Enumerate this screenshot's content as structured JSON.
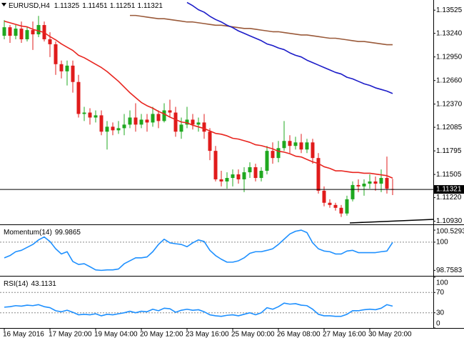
{
  "chart_data": {
    "type": "candlestick",
    "title": "EURUSD,H4",
    "categories": [
      "16 May 2016",
      null,
      null,
      null,
      null,
      null,
      null,
      null,
      "17 May 20:00",
      null,
      null,
      null,
      null,
      null,
      null,
      null,
      "19 May 04:00",
      null,
      null,
      null,
      null,
      null,
      null,
      null,
      "20 May 12:00",
      null,
      null,
      null,
      null,
      null,
      null,
      null,
      "23 May 16:00",
      null,
      null,
      null,
      null,
      null,
      null,
      null,
      "25 May 00:00",
      null,
      null,
      null,
      null,
      null,
      null,
      null,
      "26 May 08:00",
      null,
      null,
      null,
      null,
      null,
      null,
      null,
      "27 May 16:00",
      null,
      null,
      null,
      null,
      null,
      null,
      null,
      "30 May 20:00",
      null,
      null,
      null,
      null
    ],
    "candles": [
      [
        1.1321,
        1.13403,
        1.13167,
        1.13315
      ],
      [
        1.13315,
        1.13342,
        1.13123,
        1.1321
      ],
      [
        1.1321,
        1.13342,
        1.13167,
        1.13298
      ],
      [
        1.13298,
        1.13385,
        1.13123,
        1.13167
      ],
      [
        1.13167,
        1.13315,
        1.1314,
        1.1328
      ],
      [
        1.1328,
        1.13385,
        1.13036,
        1.13228
      ],
      [
        1.13228,
        1.13455,
        1.13193,
        1.13342
      ],
      [
        1.13342,
        1.13385,
        1.1314,
        1.13167
      ],
      [
        1.13167,
        1.13254,
        1.12948,
        1.13106
      ],
      [
        1.13106,
        1.1314,
        1.1273,
        1.12861
      ],
      [
        1.12861,
        1.12905,
        1.12686,
        1.12773
      ],
      [
        1.12773,
        1.12905,
        1.12599,
        1.12843
      ],
      [
        1.12843,
        1.12905,
        1.12511,
        1.12642
      ],
      [
        1.12642,
        1.1273,
        1.12205,
        1.12249
      ],
      [
        1.12249,
        1.12336,
        1.12162,
        1.12266
      ],
      [
        1.12266,
        1.12319,
        1.12118,
        1.12205
      ],
      [
        1.12205,
        1.12293,
        1.12144,
        1.12232
      ],
      [
        1.12232,
        1.12293,
        1.11987,
        1.12031
      ],
      [
        1.12031,
        1.12162,
        1.11812,
        1.12092
      ],
      [
        1.12092,
        1.12144,
        1.11987,
        1.12048
      ],
      [
        1.12048,
        1.12162,
        1.12004,
        1.12074
      ],
      [
        1.12074,
        1.12249,
        1.11987,
        1.12118
      ],
      [
        1.12118,
        1.12293,
        1.12074,
        1.12205
      ],
      [
        1.12205,
        1.1238,
        1.12031,
        1.12118
      ],
      [
        1.12118,
        1.12249,
        1.12074,
        1.12179
      ],
      [
        1.12179,
        1.12249,
        1.12031,
        1.12144
      ],
      [
        1.12144,
        1.12336,
        1.12092,
        1.12249
      ],
      [
        1.12249,
        1.12293,
        1.12074,
        1.12162
      ],
      [
        1.12162,
        1.1238,
        1.12144,
        1.12293
      ],
      [
        1.12293,
        1.12424,
        1.12205,
        1.12266
      ],
      [
        1.12266,
        1.12336,
        1.11969,
        1.12031
      ],
      [
        1.12031,
        1.12205,
        1.11943,
        1.12118
      ],
      [
        1.12118,
        1.12336,
        1.12074,
        1.12179
      ],
      [
        1.12179,
        1.12249,
        1.12057,
        1.12118
      ],
      [
        1.12118,
        1.12205,
        1.12031,
        1.12144
      ],
      [
        1.12144,
        1.12249,
        1.11943,
        1.12031
      ],
      [
        1.12031,
        1.12074,
        1.11681,
        1.11795
      ],
      [
        1.11795,
        1.11856,
        1.11419,
        1.11445
      ],
      [
        1.11445,
        1.1155,
        1.11358,
        1.11419
      ],
      [
        1.11419,
        1.11532,
        1.11331,
        1.11462
      ],
      [
        1.11462,
        1.11567,
        1.11358,
        1.11506
      ],
      [
        1.11506,
        1.11567,
        1.11392,
        1.11445
      ],
      [
        1.11445,
        1.11594,
        1.11288,
        1.11532
      ],
      [
        1.11532,
        1.11655,
        1.11462,
        1.11594
      ],
      [
        1.11594,
        1.11637,
        1.11419,
        1.11462
      ],
      [
        1.11462,
        1.11594,
        1.11419,
        1.1155
      ],
      [
        1.1155,
        1.11856,
        1.11506,
        1.11795
      ],
      [
        1.11795,
        1.11899,
        1.11637,
        1.11707
      ],
      [
        1.11707,
        1.11917,
        1.11655,
        1.11829
      ],
      [
        1.11829,
        1.12162,
        1.11795,
        1.11917
      ],
      [
        1.11917,
        1.11987,
        1.11768,
        1.11856
      ],
      [
        1.11856,
        1.11969,
        1.11812,
        1.11899
      ],
      [
        1.11899,
        1.12004,
        1.11768,
        1.11812
      ],
      [
        1.11812,
        1.11943,
        1.11768,
        1.11899
      ],
      [
        1.11899,
        1.11943,
        1.11637,
        1.11707
      ],
      [
        1.11707,
        1.11768,
        1.1127,
        1.11305
      ],
      [
        1.11305,
        1.11358,
        1.11113,
        1.11157
      ],
      [
        1.11157,
        1.112,
        1.11095,
        1.1113
      ],
      [
        1.1113,
        1.11157,
        1.1106,
        1.11095
      ],
      [
        1.11095,
        1.1113,
        1.10982,
        1.11025
      ],
      [
        1.11025,
        1.11244,
        1.10999,
        1.112
      ],
      [
        1.112,
        1.11419,
        1.11174,
        1.11375
      ],
      [
        1.11375,
        1.11445,
        1.11288,
        1.11358
      ],
      [
        1.11358,
        1.11445,
        1.11244,
        1.11392
      ],
      [
        1.11392,
        1.11506,
        1.11331,
        1.11419
      ],
      [
        1.11419,
        1.1148,
        1.11305,
        1.11392
      ],
      [
        1.11392,
        1.11567,
        1.11288,
        1.11462
      ],
      [
        1.11462,
        1.11725,
        1.1127,
        1.11331
      ],
      [
        1.11325,
        1.11451,
        1.11251,
        1.11321
      ]
    ],
    "up_color": "#1fa81f",
    "down_color": "#e01b1b",
    "ylim": [
      1.109,
      1.1365
    ],
    "yticks": [
      1.13525,
      {
        "value": 1.1324,
        "label": "1.13240"
      },
      {
        "value": 1.1295,
        "label": "1.12950"
      },
      {
        "value": 1.1266,
        "label": "1.12660"
      },
      {
        "value": 1.1237,
        "label": "1.12370"
      },
      1.12085,
      1.11795,
      1.11505,
      {
        "value": 1.1122,
        "label": "1.11220"
      },
      {
        "value": 1.1093,
        "label": "1.10930"
      }
    ],
    "grid": false,
    "overlays": [
      {
        "color": "#e8251f",
        "values": [
          1.1339,
          1.1337,
          1.1335,
          1.1333,
          1.1332,
          1.1329,
          1.1327,
          1.1325,
          1.132,
          1.1316,
          1.1311,
          1.1307,
          1.1303,
          1.1297,
          1.1294,
          1.129,
          1.1286,
          1.1282,
          1.1277,
          1.1271,
          1.1265,
          1.1258,
          1.1251,
          1.1245,
          1.1239,
          1.1235,
          1.1232,
          1.1228,
          1.1225,
          1.1221,
          1.1218,
          1.1215,
          1.1214,
          1.1211,
          1.1209,
          1.1207,
          1.1204,
          1.1201,
          1.12,
          1.1198,
          1.1195,
          1.1194,
          1.1192,
          1.119,
          1.1187,
          1.1186,
          1.1184,
          1.1182,
          1.1179,
          1.1178,
          1.1176,
          1.1173,
          1.1172,
          1.1169,
          1.1166,
          1.1164,
          1.116,
          1.1158,
          1.1155,
          1.1155,
          1.1154,
          1.1153,
          1.1153,
          1.1152,
          1.1152,
          1.1151,
          1.115,
          1.1149,
          1.1146
        ]
      },
      {
        "color": "#9a5a3a",
        "values": [
          null,
          null,
          null,
          null,
          null,
          null,
          null,
          null,
          null,
          null,
          null,
          null,
          null,
          null,
          null,
          null,
          null,
          null,
          null,
          null,
          null,
          null,
          1.1346,
          1.1346,
          1.1345,
          1.1344,
          1.1343,
          1.1342,
          1.1342,
          1.1341,
          1.134,
          1.1339,
          1.1338,
          1.1338,
          1.1337,
          1.1336,
          1.1335,
          1.1334,
          1.1334,
          1.1333,
          1.1332,
          1.1331,
          1.133,
          1.133,
          1.1329,
          1.1328,
          1.1327,
          1.1326,
          1.1326,
          1.1325,
          1.1324,
          1.1323,
          1.1322,
          1.1322,
          1.1321,
          1.132,
          1.1319,
          1.1318,
          1.1318,
          1.1317,
          1.1316,
          1.1315,
          1.1314,
          1.1314,
          1.1313,
          1.1312,
          1.1311,
          1.131,
          1.131
        ]
      },
      {
        "color": "#1c1cc8",
        "values": [
          null,
          null,
          null,
          null,
          null,
          null,
          null,
          null,
          null,
          null,
          null,
          null,
          null,
          null,
          null,
          null,
          null,
          null,
          null,
          null,
          null,
          null,
          null,
          null,
          null,
          null,
          null,
          null,
          null,
          null,
          null,
          null,
          1.1362,
          1.1358,
          1.1353,
          1.135,
          1.1345,
          1.1341,
          1.1338,
          1.1334,
          1.1331,
          1.1327,
          1.1324,
          1.1321,
          1.1318,
          1.1315,
          1.1311,
          1.1309,
          1.1306,
          1.1304,
          1.13,
          1.1297,
          1.1295,
          1.1291,
          1.1288,
          1.1285,
          1.1282,
          1.1279,
          1.1276,
          1.1274,
          1.127,
          1.1268,
          1.1265,
          1.1262,
          1.126,
          1.1257,
          1.1255,
          1.1253,
          1.125
        ]
      }
    ],
    "indicators": [
      {
        "name": "Momentum(14)",
        "color": "#1e90ff",
        "values": [
          99.31,
          99.41,
          99.58,
          99.64,
          99.77,
          99.9,
          100.1,
          100.23,
          100.03,
          99.71,
          99.48,
          99.58,
          99.15,
          99.02,
          99.05,
          98.92,
          98.78,
          98.7583,
          98.78,
          98.78,
          98.82,
          99.05,
          99.18,
          99.31,
          99.31,
          99.35,
          99.58,
          99.9,
          100.13,
          99.97,
          99.93,
          99.9,
          99.8,
          99.97,
          100.1,
          100.03,
          99.64,
          99.41,
          99.25,
          99.12,
          99.12,
          99.18,
          99.31,
          99.51,
          99.58,
          99.58,
          99.64,
          99.71,
          99.9,
          100.13,
          100.36,
          100.48,
          100.5293,
          100.42,
          99.97,
          99.71,
          99.61,
          99.58,
          99.48,
          99.48,
          99.61,
          99.64,
          99.54,
          99.54,
          99.54,
          99.54,
          99.58,
          99.61,
          99.9865
        ],
        "ylim": [
          98.55,
          100.72
        ],
        "yticks": [
          100
        ],
        "range_labels": [
          100.5293,
          98.7583
        ]
      },
      {
        "name": "RSI(14)",
        "color": "#1e90ff",
        "values": [
          41,
          42,
          44,
          43,
          45,
          44,
          46,
          42,
          40,
          34,
          32,
          35,
          31,
          26,
          27,
          26,
          28,
          24,
          27,
          26,
          28,
          30,
          33,
          30,
          33,
          32,
          37,
          34,
          39,
          38,
          31,
          35,
          37,
          35,
          36,
          32,
          26,
          24,
          23,
          25,
          26,
          24,
          27,
          30,
          26,
          30,
          40,
          37,
          42,
          49,
          47,
          48,
          45,
          44,
          37,
          27,
          24,
          24,
          23,
          23,
          27,
          34,
          34,
          36,
          37,
          36,
          39,
          46,
          43.1131
        ],
        "ylim": [
          0,
          100
        ],
        "yticks": [
          70,
          30
        ],
        "range_labels": [
          100,
          0
        ]
      }
    ]
  }
}
